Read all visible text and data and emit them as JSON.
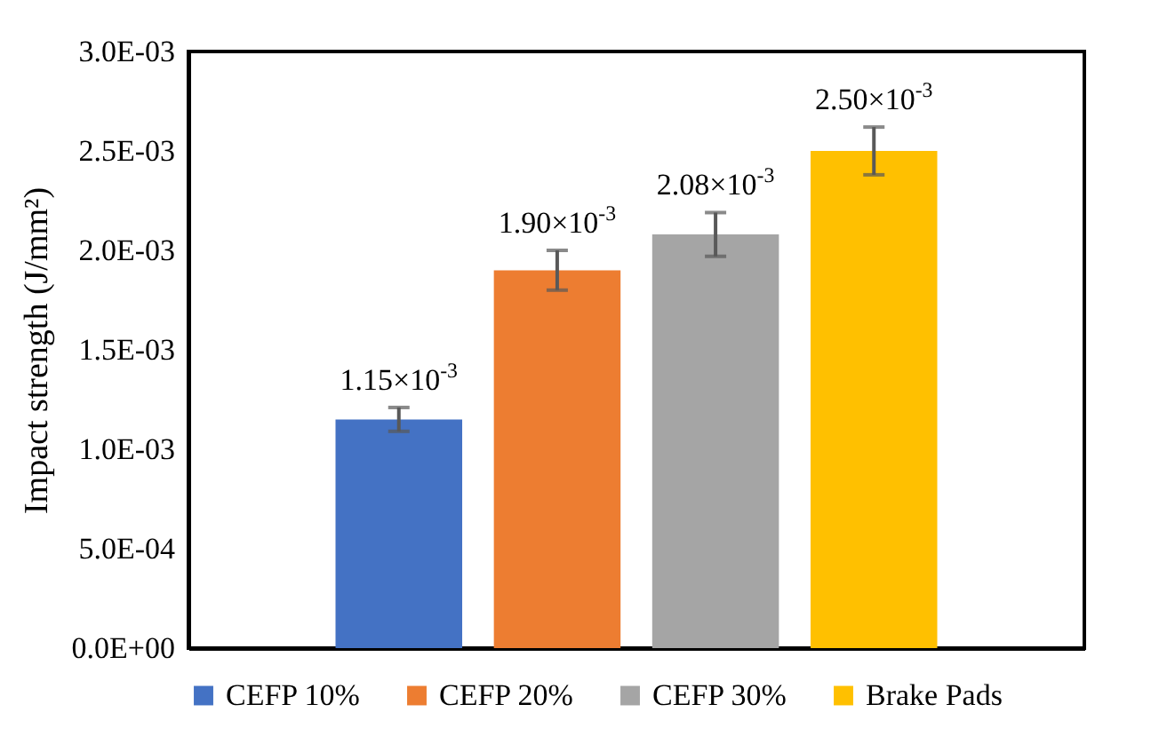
{
  "chart_data": {
    "type": "bar",
    "ylabel": "Impact strength (J/mm²)",
    "categories": [
      null
    ],
    "series": [
      {
        "name": "CEFP 10%",
        "color": "#4472c4",
        "values": [
          0.00115
        ],
        "errors": [
          6e-05
        ],
        "value_labels": [
          "1.15×10$^{-3}$"
        ]
      },
      {
        "name": "CEFP 20%",
        "color": "#ed7d31",
        "values": [
          0.0019
        ],
        "errors": [
          0.0001
        ],
        "value_labels": [
          "1.90×10$^{-3}$"
        ]
      },
      {
        "name": "CEFP 30%",
        "color": "#a5a5a5",
        "values": [
          0.00208
        ],
        "errors": [
          0.00011
        ],
        "value_labels": [
          "2.08×10$^{-3}$"
        ]
      },
      {
        "name": "Brake Pads",
        "color": "#ffc000",
        "values": [
          0.0025
        ],
        "errors": [
          0.00012
        ],
        "value_labels": [
          "2.50×10$^{-3}$"
        ]
      }
    ],
    "ylim": [
      0,
      0.003
    ],
    "yticks": [
      {
        "value": 0,
        "label": "0.0E+00"
      },
      {
        "value": 0.0005,
        "label": "5.0E-04"
      },
      {
        "value": 0.001,
        "label": "1.0E-03"
      },
      {
        "value": 0.0015,
        "label": "1.5E-03"
      },
      {
        "value": 0.002,
        "label": "2.0E-03"
      },
      {
        "value": 0.0025,
        "label": "2.5E-03"
      },
      {
        "value": 0.003,
        "label": "3.0E-03"
      }
    ],
    "grid": false,
    "legend": "bottom"
  }
}
